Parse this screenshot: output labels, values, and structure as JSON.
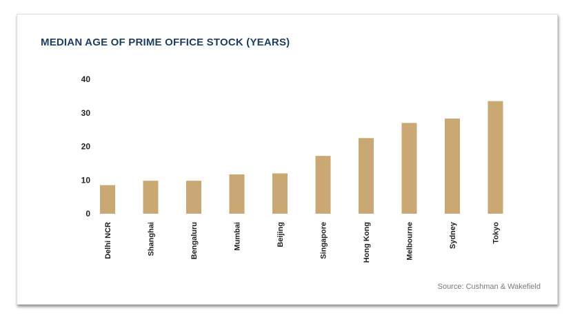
{
  "chart_data": {
    "type": "bar",
    "title": "MEDIAN AGE OF PRIME OFFICE STOCK (YEARS)",
    "xlabel": "",
    "ylabel": "",
    "categories": [
      "Delhi NCR",
      "Shanghai",
      "Bengaluru",
      "Mumbai",
      "Beijing",
      "Singapore",
      "Hong Kong",
      "Melbourne",
      "Sydney",
      "Tokyo"
    ],
    "values": [
      8.5,
      9.8,
      9.8,
      11.7,
      12.0,
      17.2,
      22.5,
      27.0,
      28.3,
      33.5
    ],
    "yticks": [
      0,
      10,
      20,
      30,
      40
    ],
    "ylim": [
      0,
      40
    ],
    "grid": false,
    "legend": "none",
    "bar_color": "#c9a873"
  },
  "source": "Source: Cushman & Wakefield"
}
